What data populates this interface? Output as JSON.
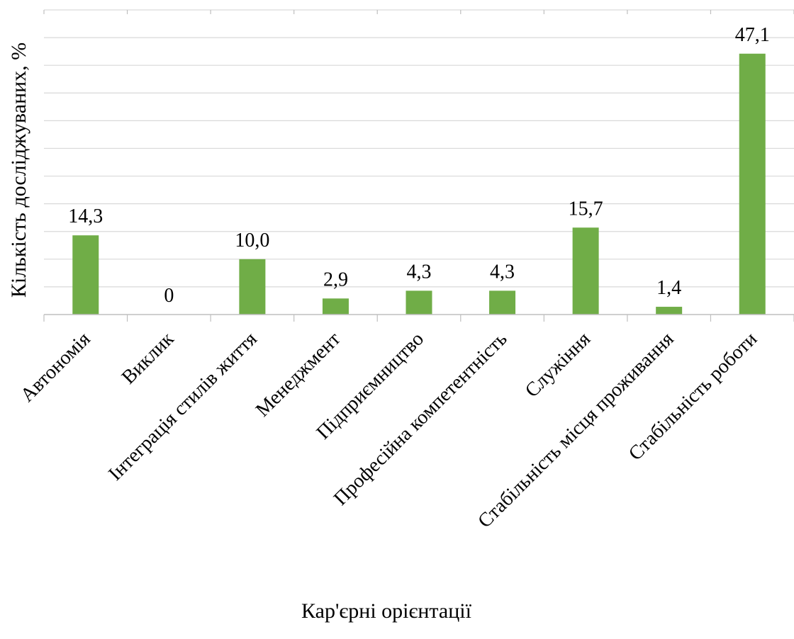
{
  "chart_data": {
    "type": "bar",
    "title": "",
    "xlabel": "Кар'єрні орієнтації",
    "ylabel": "Кількість досліджуваних, %",
    "categories": [
      "Автономія",
      "Виклик",
      "Інтеграція стилів життя",
      "Менеджмент",
      "Підприємництво",
      "Професійна компетентність",
      "Служіння",
      "Стабільність місця проживання",
      "Стабільність роботи"
    ],
    "values": [
      14.3,
      0,
      10.0,
      2.9,
      4.3,
      4.3,
      15.7,
      1.4,
      47.1
    ],
    "value_labels": [
      "14,3",
      "0",
      "10,0",
      "2,9",
      "4,3",
      "4,3",
      "15,7",
      "1,4",
      "47,1"
    ],
    "ylim": [
      0,
      55
    ],
    "grid": true,
    "legend": "none",
    "bar_color": "#70ad47"
  }
}
